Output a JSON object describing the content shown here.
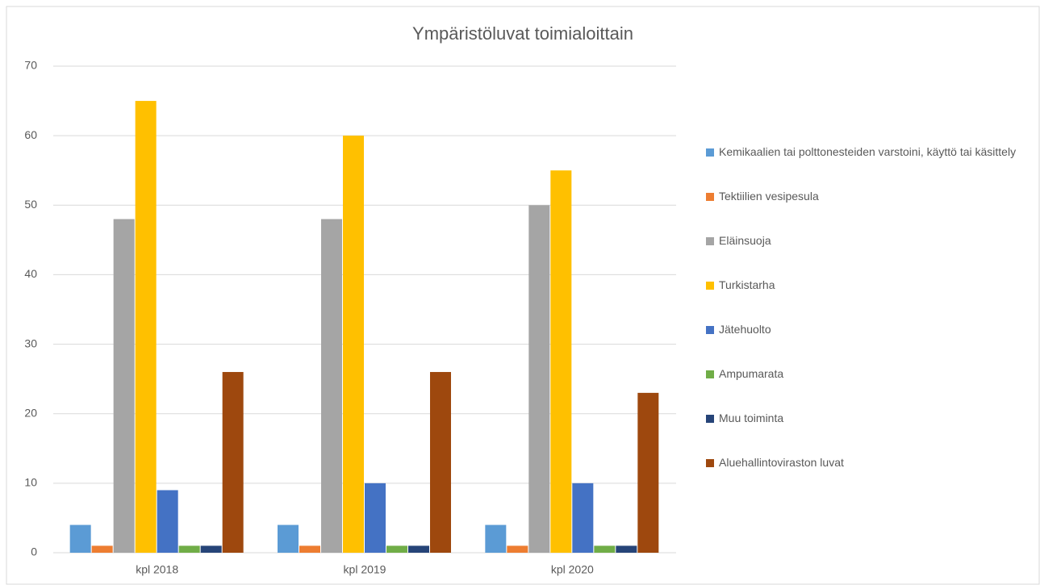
{
  "chart_data": {
    "type": "bar",
    "title": "Ympäristöluvat toimialoittain",
    "categories": [
      "kpl 2018",
      "kpl 2019",
      "kpl 2020"
    ],
    "series": [
      {
        "name": "Kemikaalien tai polttonesteiden varstoini, käyttö tai käsittely",
        "color": "#5b9bd5",
        "values": [
          4,
          4,
          4
        ]
      },
      {
        "name": "Tektiilien vesipesula",
        "color": "#ed7d31",
        "values": [
          1,
          1,
          1
        ]
      },
      {
        "name": "Eläinsuoja",
        "color": "#a5a5a5",
        "values": [
          48,
          48,
          50
        ]
      },
      {
        "name": "Turkistarha",
        "color": "#ffc000",
        "values": [
          65,
          60,
          55
        ]
      },
      {
        "name": "Jätehuolto",
        "color": "#4472c4",
        "values": [
          9,
          10,
          10
        ]
      },
      {
        "name": "Ampumarata",
        "color": "#70ad47",
        "values": [
          1,
          1,
          1
        ]
      },
      {
        "name": "Muu toiminta",
        "color": "#264478",
        "values": [
          1,
          1,
          1
        ]
      },
      {
        "name": "Aluehallintoviraston luvat",
        "color": "#9e480e",
        "values": [
          26,
          26,
          23
        ]
      }
    ],
    "ylim": [
      0,
      70
    ],
    "yticks": [
      0,
      10,
      20,
      30,
      40,
      50,
      60,
      70
    ],
    "grid": true,
    "legend": "right"
  }
}
